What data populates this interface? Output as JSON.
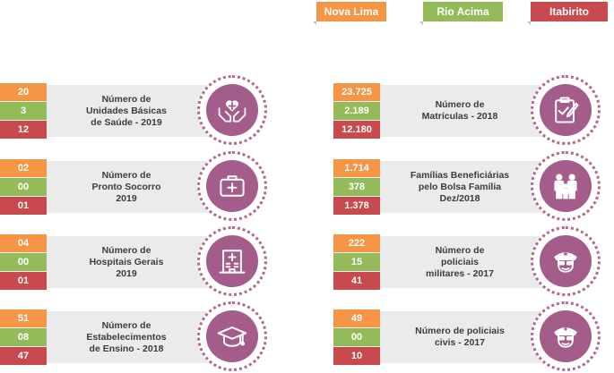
{
  "legend": {
    "nova_lima": "Nova Lima",
    "rio_acima": "Rio Acima",
    "itabirito": "Itabirito"
  },
  "colors": {
    "nova_lima": "#f59545",
    "rio_acima": "#94bb59",
    "itabirito": "#c84a4f",
    "icon_circle": "#a45d8b"
  },
  "cards": [
    {
      "label": "Número de\nUnidades Básicas\nde Saúde - 2019",
      "icon": "health-hands-icon",
      "values": [
        "20",
        "3",
        "12"
      ]
    },
    {
      "label": "Número de\nPronto Socorro\n2019",
      "icon": "first-aid-kit-icon",
      "values": [
        "02",
        "00",
        "01"
      ]
    },
    {
      "label": "Número de\nHospitais Gerais\n2019",
      "icon": "hospital-icon",
      "values": [
        "04",
        "00",
        "01"
      ]
    },
    {
      "label": "Número de\nEstabelecimentos\nde Ensino - 2018",
      "icon": "graduation-cap-icon",
      "values": [
        "51",
        "08",
        "47"
      ]
    },
    {
      "label": "Número de\nMatrículas - 2018",
      "icon": "clipboard-icon",
      "values": [
        "23.725",
        "2.189",
        "12.180"
      ]
    },
    {
      "label": "Famílias Beneficiárias\npelo Bolsa Família\nDez/2018",
      "icon": "family-icon",
      "values": [
        "1.714",
        "378",
        "1.378"
      ]
    },
    {
      "label": "Número de\npoliciais\nmilitares - 2017",
      "icon": "military-police-icon",
      "values": [
        "222",
        "15",
        "41"
      ]
    },
    {
      "label": "Número de policiais\ncivis - 2017",
      "icon": "civil-police-icon",
      "values": [
        "49",
        "00",
        "10"
      ]
    }
  ]
}
